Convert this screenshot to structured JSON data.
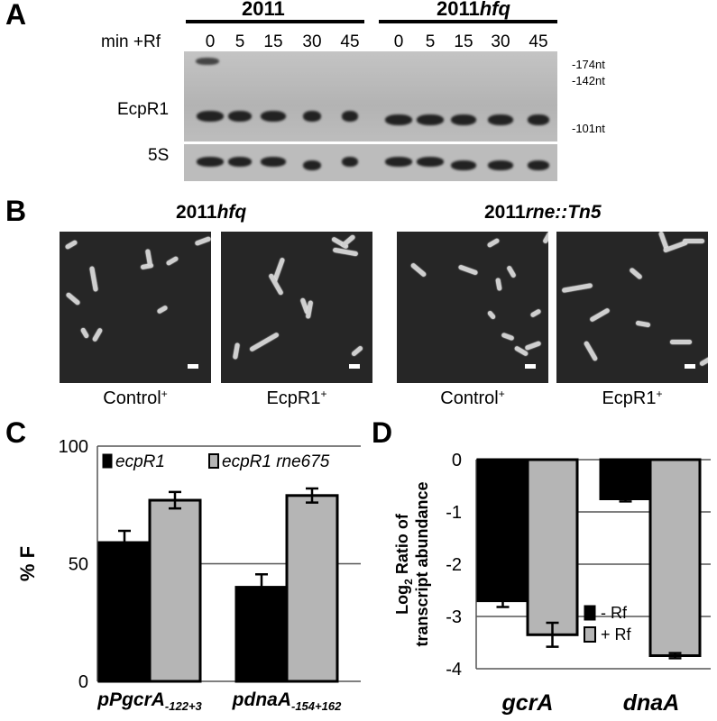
{
  "panelA": {
    "letter": "A",
    "group1": "2011",
    "group2_prefix": "2011",
    "group2_italic": "hfq",
    "min_label": "min +Rf",
    "timepoints": [
      "0",
      "5",
      "15",
      "30",
      "45",
      "0",
      "5",
      "15",
      "30",
      "45"
    ],
    "row1_label": "EcpR1",
    "row2_label": "5S",
    "markers": [
      "-174nt",
      "-142nt",
      "-101nt"
    ]
  },
  "panelB": {
    "letter": "B",
    "title1_prefix": "2011",
    "title1_italic": "hfq",
    "title2_prefix": "2011",
    "title2_italic": "rne::Tn5",
    "captions": [
      {
        "text": "Control",
        "sup": "+"
      },
      {
        "text": "EcpR1",
        "sup": "+"
      },
      {
        "text": "Control",
        "sup": "+"
      },
      {
        "text": "EcpR1",
        "sup": "+"
      }
    ]
  },
  "panelC": {
    "letter": "C",
    "ylabel": "% F",
    "legend": [
      "ecpR1",
      "ecpR1 rne675"
    ]
  },
  "panelD": {
    "letter": "D",
    "ylabel_line1_prefix": "Log",
    "ylabel_line1_sub": "2",
    "ylabel_line1_suffix": " Ratio of",
    "ylabel_line2": "transcript abundance",
    "legend": [
      "- Rf",
      "+ Rf"
    ]
  },
  "chart_data": [
    {
      "type": "bar",
      "panel": "C",
      "categories": [
        {
          "main": "pPgcrA",
          "sub": "-122+3"
        },
        {
          "main": "pdnaA",
          "sub": "-154+162"
        }
      ],
      "series": [
        {
          "name": "ecpR1",
          "values": [
            59,
            40
          ],
          "errors": [
            5,
            5.5
          ],
          "color": "#000000"
        },
        {
          "name": "ecpR1 rne675",
          "values": [
            77,
            79
          ],
          "errors": [
            3.5,
            3
          ],
          "color": "#b5b5b5"
        }
      ],
      "ylabel": "% F",
      "ylim": [
        0,
        100
      ],
      "yticks": [
        "0",
        "50",
        "100"
      ],
      "grid": true
    },
    {
      "type": "bar",
      "panel": "D",
      "categories": [
        "gcrA",
        "dnaA"
      ],
      "series": [
        {
          "name": "- Rf",
          "values": [
            -2.7,
            -0.75
          ],
          "errors": [
            0.12,
            0.05
          ],
          "color": "#000000"
        },
        {
          "name": "+ Rf",
          "values": [
            -3.35,
            -3.75
          ],
          "errors": [
            0.23,
            0.05
          ],
          "color": "#b5b5b5"
        }
      ],
      "ylabel": "Log2 Ratio of transcript abundance",
      "ylim": [
        -4,
        0
      ],
      "yticks": [
        "0",
        "-1",
        "-2",
        "-3",
        "-4"
      ],
      "grid": true
    }
  ]
}
